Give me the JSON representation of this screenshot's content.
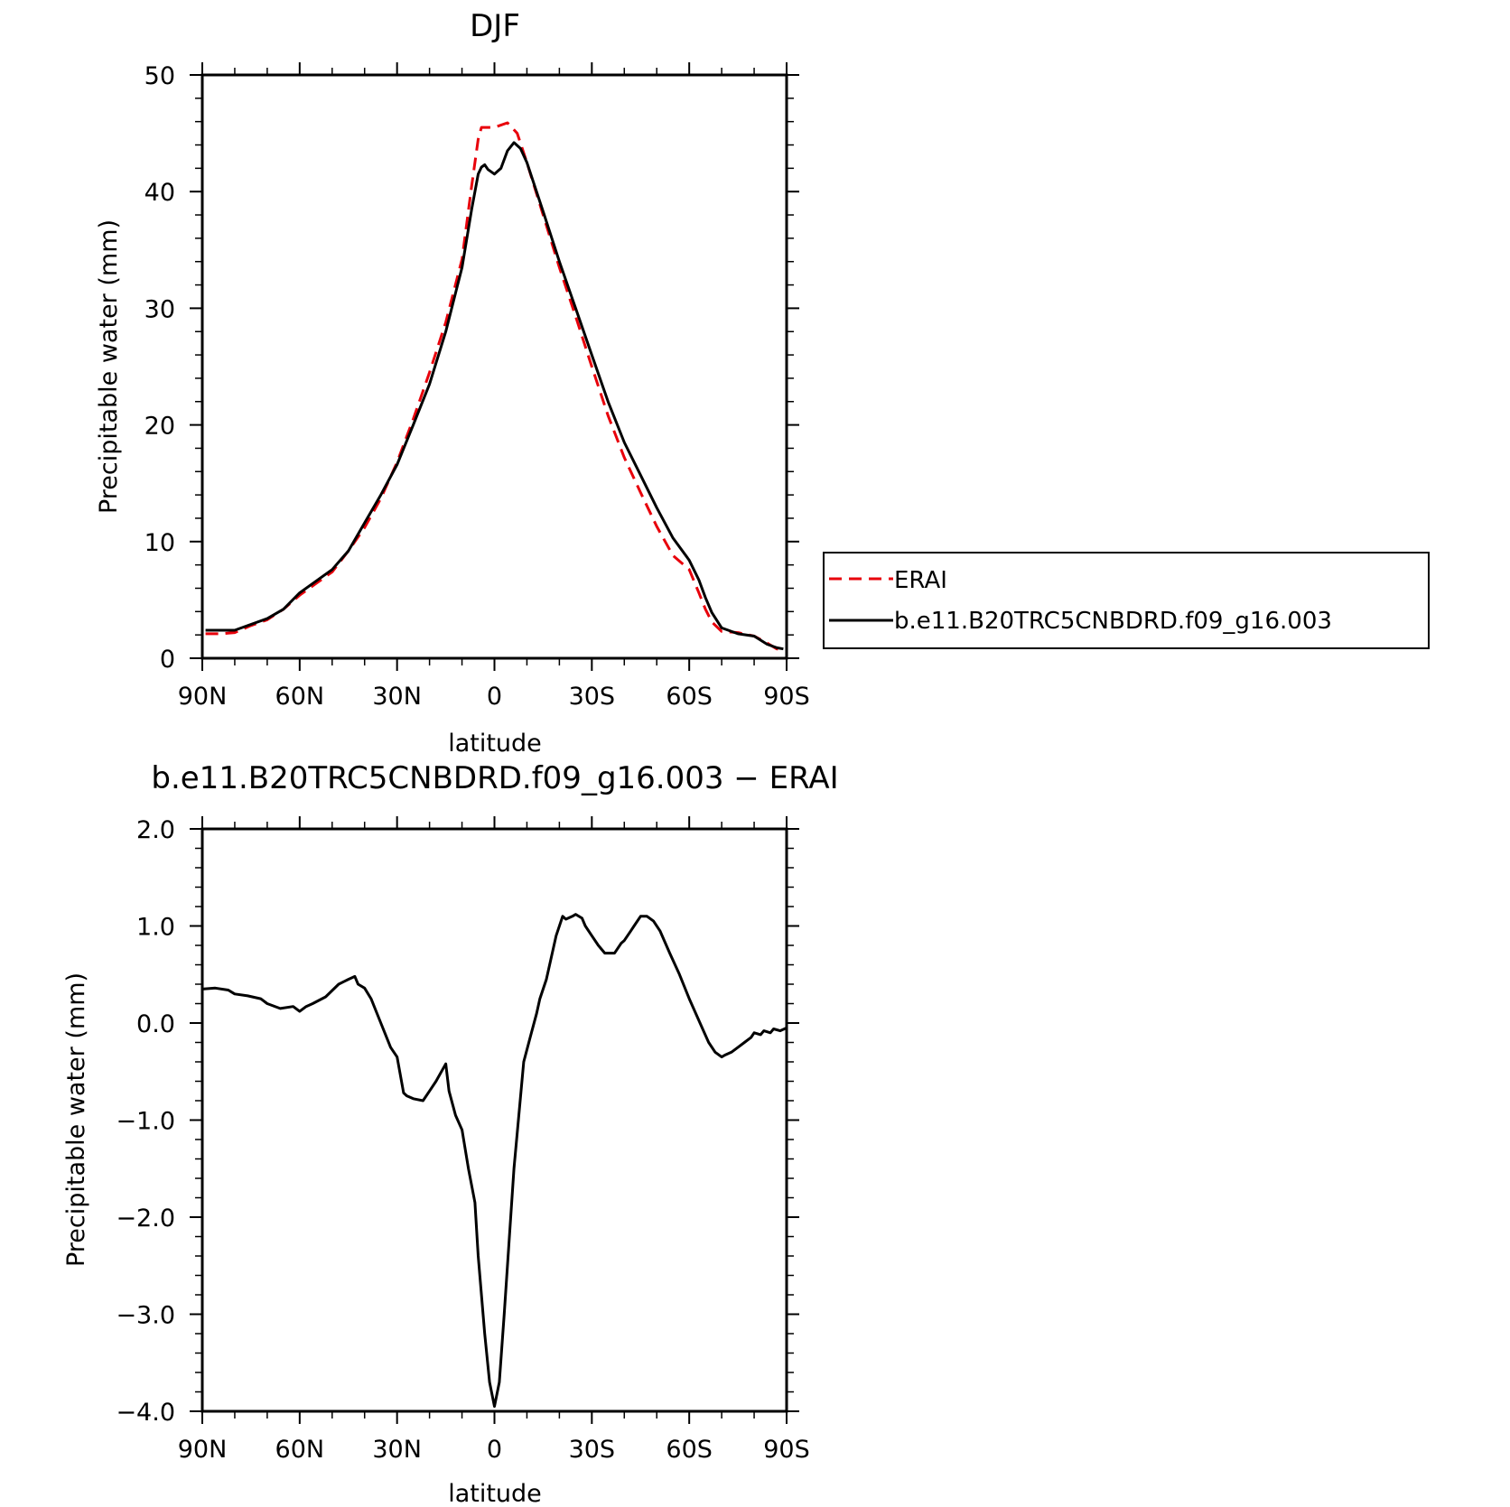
{
  "colors": {
    "erai": "#e8000b",
    "model": "#000000"
  },
  "legend": {
    "placement": "right of top panel",
    "items": [
      {
        "label": "ERAI",
        "style": "dashed",
        "color": "#e8000b"
      },
      {
        "label": "b.e11.B20TRC5CNBDRD.f09_g16.003",
        "style": "solid",
        "color": "#000000"
      }
    ]
  },
  "chart_data": [
    {
      "type": "line",
      "title": "DJF",
      "xlabel": "latitude",
      "ylabel": "Precipitable water (mm)",
      "xlim": [
        90,
        -90
      ],
      "ylim": [
        0,
        50
      ],
      "x_ticks": [
        90,
        60,
        30,
        0,
        -30,
        -60,
        -90
      ],
      "x_tick_labels": [
        "90N",
        "60N",
        "30N",
        "0",
        "30S",
        "60S",
        "90S"
      ],
      "y_ticks": [
        0,
        10,
        20,
        30,
        40,
        50
      ],
      "y_tick_labels": [
        "0",
        "10",
        "20",
        "30",
        "40",
        "50"
      ],
      "grid": false,
      "series": [
        {
          "name": "ERAI",
          "style": "dashed",
          "x": [
            89,
            84,
            80,
            75,
            70,
            65,
            60,
            55,
            50,
            45,
            40,
            35,
            30,
            25,
            20,
            15,
            10,
            7,
            5,
            4,
            3,
            0,
            -4,
            -7,
            -10,
            -15,
            -20,
            -25,
            -30,
            -35,
            -40,
            -45,
            -50,
            -55,
            -60,
            -63,
            -65,
            -67,
            -70,
            -75,
            -80,
            -84,
            -87,
            -89
          ],
          "y": [
            2.1,
            2.1,
            2.2,
            2.8,
            3.3,
            4.2,
            5.4,
            6.4,
            7.4,
            9.2,
            11.2,
            13.7,
            16.8,
            20.5,
            24.5,
            28.8,
            34.2,
            40.5,
            44.5,
            45.5,
            45.5,
            45.5,
            45.9,
            45.0,
            42.5,
            38.0,
            33.5,
            29.3,
            25.0,
            20.8,
            17.2,
            14.2,
            11.3,
            8.8,
            7.6,
            5.6,
            4.2,
            3.1,
            2.3,
            2.2,
            1.9,
            1.3,
            0.8,
            0.7
          ]
        },
        {
          "name": "b.e11.B20TRC5CNBDRD.f09_g16.003",
          "style": "solid",
          "x": [
            89,
            84,
            80,
            75,
            70,
            65,
            60,
            55,
            50,
            45,
            40,
            35,
            30,
            25,
            20,
            15,
            10,
            7,
            5,
            4,
            3,
            2,
            0,
            -2,
            -4,
            -6,
            -8,
            -10,
            -15,
            -20,
            -25,
            -30,
            -35,
            -40,
            -45,
            -50,
            -55,
            -60,
            -63,
            -65,
            -67,
            -70,
            -75,
            -80,
            -84,
            -87,
            -89
          ],
          "y": [
            2.4,
            2.4,
            2.4,
            2.9,
            3.4,
            4.2,
            5.6,
            6.6,
            7.6,
            9.2,
            11.6,
            14.0,
            16.6,
            20.0,
            23.5,
            28.0,
            33.5,
            38.5,
            41.5,
            42.1,
            42.3,
            41.9,
            41.5,
            42.0,
            43.5,
            44.2,
            43.7,
            42.5,
            38.3,
            34.0,
            30.0,
            26.0,
            22.0,
            18.5,
            15.7,
            12.9,
            10.3,
            8.4,
            6.7,
            5.2,
            3.9,
            2.6,
            2.1,
            1.9,
            1.2,
            0.9,
            0.8
          ]
        }
      ]
    },
    {
      "type": "line",
      "title": "b.e11.B20TRC5CNBDRD.f09_g16.003 − ERAI",
      "xlabel": "latitude",
      "ylabel": "Precipitable water (mm)",
      "xlim": [
        90,
        -90
      ],
      "ylim": [
        -4.0,
        2.0
      ],
      "x_ticks": [
        90,
        60,
        30,
        0,
        -30,
        -60,
        -90
      ],
      "x_tick_labels": [
        "90N",
        "60N",
        "30N",
        "0",
        "30S",
        "60S",
        "90S"
      ],
      "y_ticks": [
        -4.0,
        -3.0,
        -2.0,
        -1.0,
        0.0,
        1.0,
        2.0
      ],
      "y_tick_labels": [
        "−4.0",
        "−3.0",
        "−2.0",
        "−1.0",
        "0.0",
        "1.0",
        "2.0"
      ],
      "grid": false,
      "series": [
        {
          "name": "b.e11.B20TRC5CNBDRD.f09_g16.003 − ERAI",
          "style": "solid",
          "x": [
            90,
            86,
            82,
            80,
            76,
            72,
            70,
            66,
            62,
            60,
            58,
            56,
            52,
            48,
            45,
            43,
            42,
            40,
            38,
            35,
            32,
            30,
            28,
            27,
            25,
            22,
            20,
            18,
            15,
            14,
            12,
            10,
            8,
            6,
            5,
            3,
            1.5,
            0,
            -1.5,
            -3,
            -6,
            -9,
            -11,
            -13,
            -14,
            -16,
            -18,
            -19,
            -21,
            -22,
            -24,
            -25,
            -27,
            -28,
            -30,
            -32,
            -34,
            -37,
            -39,
            -40,
            -42,
            -43,
            -45,
            -47,
            -49,
            -51,
            -54,
            -57,
            -60,
            -64,
            -66,
            -68,
            -70,
            -71,
            -73,
            -75,
            -77,
            -79,
            -80,
            -82,
            -83,
            -85,
            -86,
            -88,
            -90
          ],
          "y": [
            0.35,
            0.36,
            0.34,
            0.3,
            0.28,
            0.25,
            0.2,
            0.15,
            0.17,
            0.12,
            0.17,
            0.2,
            0.27,
            0.4,
            0.45,
            0.48,
            0.4,
            0.36,
            0.25,
            0.0,
            -0.25,
            -0.35,
            -0.72,
            -0.75,
            -0.78,
            -0.8,
            -0.7,
            -0.6,
            -0.42,
            -0.7,
            -0.95,
            -1.1,
            -1.5,
            -1.85,
            -2.4,
            -3.2,
            -3.7,
            -3.95,
            -3.7,
            -3.0,
            -1.5,
            -0.4,
            -0.15,
            0.1,
            0.25,
            0.45,
            0.75,
            0.9,
            1.1,
            1.07,
            1.1,
            1.12,
            1.08,
            1.0,
            0.9,
            0.8,
            0.72,
            0.72,
            0.82,
            0.85,
            0.95,
            1.0,
            1.1,
            1.1,
            1.05,
            0.95,
            0.72,
            0.5,
            0.25,
            -0.05,
            -0.2,
            -0.3,
            -0.35,
            -0.33,
            -0.3,
            -0.25,
            -0.2,
            -0.15,
            -0.1,
            -0.12,
            -0.08,
            -0.1,
            -0.06,
            -0.08,
            -0.05
          ]
        }
      ]
    }
  ]
}
